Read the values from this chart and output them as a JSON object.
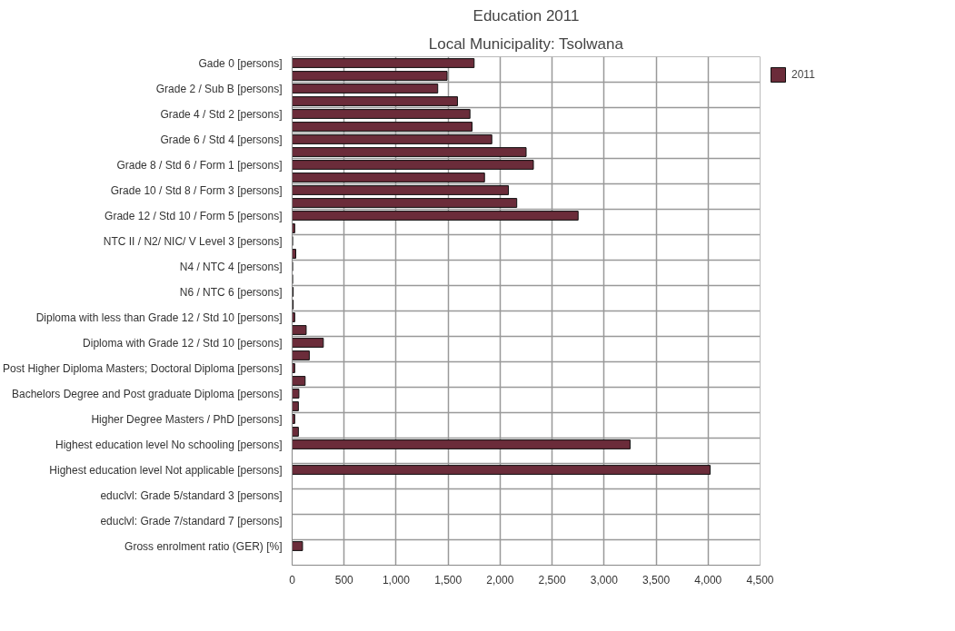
{
  "chart_data": {
    "type": "bar",
    "orientation": "horizontal",
    "title": "Education 2011",
    "subtitle": "Local Municipality: Tsolwana",
    "categories": [
      "Gade 0 [persons]",
      null,
      "Grade 2 / Sub B [persons]",
      null,
      "Grade 4 / Std 2 [persons]",
      null,
      "Grade 6 / Std 4 [persons]",
      null,
      "Grade 8 / Std 6 / Form 1 [persons]",
      null,
      "Grade 10 / Std 8 / Form 3 [persons]",
      null,
      "Grade 12 / Std 10 / Form 5 [persons]",
      null,
      "NTC II / N2/ NIC/ V Level 3 [persons]",
      null,
      "N4 / NTC 4 [persons]",
      null,
      "N6 / NTC 6 [persons]",
      null,
      "Diploma with less than Grade 12 / Std 10 [persons]",
      null,
      "Diploma with Grade 12 / Std 10 [persons]",
      null,
      "Post Higher Diploma Masters; Doctoral Diploma [persons]",
      null,
      "Bachelors Degree and Post graduate Diploma [persons]",
      null,
      "Higher Degree Masters / PhD [persons]",
      null,
      "Highest education level No schooling [persons]",
      null,
      "Highest education level Not applicable [persons]",
      null,
      "educlvl: Grade 5/standard 3 [persons]",
      null,
      "educlvl: Grade 7/standard 7 [persons]",
      null,
      "Gross enrolment ratio (GER) [%]"
    ],
    "series": [
      {
        "name": "2011",
        "color": "#6b2c3a",
        "values": [
          1750,
          1490,
          1400,
          1590,
          1710,
          1730,
          1920,
          2250,
          2320,
          1850,
          2080,
          2160,
          2750,
          25,
          5,
          35,
          5,
          5,
          10,
          10,
          25,
          135,
          300,
          165,
          25,
          125,
          65,
          60,
          25,
          60,
          3250,
          null,
          4020,
          null,
          null,
          null,
          null,
          null,
          100
        ]
      }
    ],
    "xlim": [
      0,
      4500
    ],
    "xticks": [
      {
        "value": 0,
        "label": "0"
      },
      {
        "value": 500,
        "label": "500"
      },
      {
        "value": 1000,
        "label": "1,000"
      },
      {
        "value": 1500,
        "label": "1,500"
      },
      {
        "value": 2000,
        "label": "2,000"
      },
      {
        "value": 2500,
        "label": "2,500"
      },
      {
        "value": 3000,
        "label": "3,000"
      },
      {
        "value": 3500,
        "label": "3,500"
      },
      {
        "value": 4000,
        "label": "4,000"
      },
      {
        "value": 4500,
        "label": "4,500"
      }
    ],
    "grid": true,
    "legend": "top right"
  }
}
